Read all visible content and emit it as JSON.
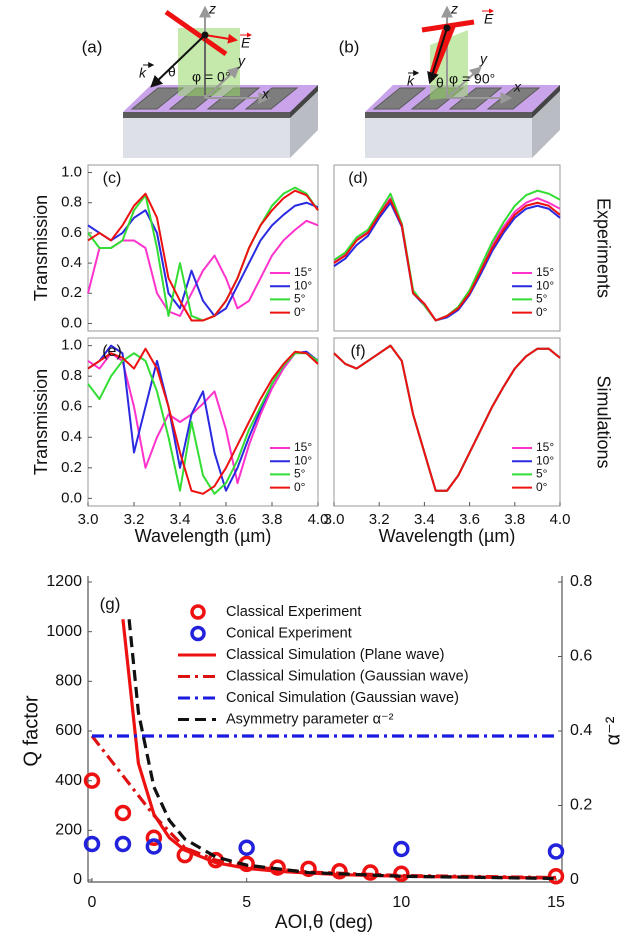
{
  "diagrams": [
    {
      "label": "(a)",
      "texts": [
        "z",
        "y",
        "x",
        "θ",
        "k",
        "E",
        "φ = 0°"
      ]
    },
    {
      "label": "(b)",
      "texts": [
        "z",
        "y",
        "x",
        "θ",
        "k",
        "E",
        "φ = 90°"
      ]
    }
  ],
  "chart_data": [
    {
      "type": "line",
      "label": "(c)",
      "ylabel": "Transmission",
      "x": [
        3,
        3.05,
        3.1,
        3.15,
        3.2,
        3.25,
        3.3,
        3.35,
        3.4,
        3.45,
        3.5,
        3.55,
        3.6,
        3.65,
        3.7,
        3.75,
        3.8,
        3.85,
        3.9,
        3.95,
        4
      ],
      "xlim": [
        3,
        4
      ],
      "ylim": [
        -0.05,
        1.05
      ],
      "yticks": [
        {
          "value": 0,
          "label": "0.0"
        },
        0.2,
        0.4,
        0.6,
        0.8,
        {
          "value": 1,
          "label": "1.0"
        }
      ],
      "series": [
        {
          "name": "15°",
          "color": "#ff33cc",
          "values": [
            0.2,
            0.5,
            0.5,
            0.55,
            0.55,
            0.5,
            0.2,
            0.08,
            0.05,
            0.2,
            0.35,
            0.45,
            0.3,
            0.1,
            0.15,
            0.3,
            0.45,
            0.55,
            0.62,
            0.68,
            0.65
          ]
        },
        {
          "name": "10°",
          "color": "#2a2ae0",
          "values": [
            0.65,
            0.6,
            0.55,
            0.6,
            0.7,
            0.75,
            0.6,
            0.2,
            0.1,
            0.35,
            0.15,
            0.05,
            0.1,
            0.25,
            0.4,
            0.55,
            0.65,
            0.72,
            0.78,
            0.8,
            0.77
          ]
        },
        {
          "name": "5°",
          "color": "#33dd33",
          "values": [
            0.6,
            0.5,
            0.5,
            0.55,
            0.75,
            0.85,
            0.5,
            0.05,
            0.4,
            0.05,
            0.02,
            0.05,
            0.15,
            0.3,
            0.5,
            0.65,
            0.78,
            0.86,
            0.9,
            0.86,
            0.75
          ]
        },
        {
          "name": "0°",
          "color": "#ee1111",
          "values": [
            0.55,
            0.6,
            0.55,
            0.65,
            0.78,
            0.86,
            0.7,
            0.3,
            0.15,
            0.02,
            0.02,
            0.05,
            0.15,
            0.3,
            0.5,
            0.65,
            0.75,
            0.83,
            0.88,
            0.85,
            0.75
          ]
        }
      ]
    },
    {
      "type": "line",
      "label": "(d)",
      "side_label": "Experiments",
      "x": [
        3,
        3.05,
        3.1,
        3.15,
        3.2,
        3.25,
        3.3,
        3.35,
        3.4,
        3.45,
        3.5,
        3.55,
        3.6,
        3.65,
        3.7,
        3.75,
        3.8,
        3.85,
        3.9,
        3.95,
        4
      ],
      "xlim": [
        3,
        4
      ],
      "ylim": [
        -0.05,
        1.05
      ],
      "series": [
        {
          "name": "15°",
          "color": "#ff33cc",
          "values": [
            0.41,
            0.46,
            0.56,
            0.61,
            0.73,
            0.83,
            0.66,
            0.21,
            0.13,
            0.02,
            0.05,
            0.1,
            0.21,
            0.36,
            0.52,
            0.64,
            0.74,
            0.8,
            0.83,
            0.8,
            0.76
          ]
        },
        {
          "name": "10°",
          "color": "#2a2ae0",
          "values": [
            0.38,
            0.43,
            0.52,
            0.58,
            0.7,
            0.8,
            0.64,
            0.2,
            0.12,
            0.02,
            0.04,
            0.09,
            0.19,
            0.33,
            0.48,
            0.6,
            0.7,
            0.76,
            0.78,
            0.76,
            0.7
          ]
        },
        {
          "name": "5°",
          "color": "#33dd33",
          "values": [
            0.42,
            0.47,
            0.57,
            0.62,
            0.74,
            0.86,
            0.66,
            0.22,
            0.12,
            0.02,
            0.05,
            0.11,
            0.22,
            0.38,
            0.54,
            0.67,
            0.78,
            0.85,
            0.88,
            0.86,
            0.82
          ]
        },
        {
          "name": "0°",
          "color": "#ee1111",
          "values": [
            0.4,
            0.45,
            0.55,
            0.6,
            0.72,
            0.82,
            0.65,
            0.2,
            0.13,
            0.02,
            0.05,
            0.1,
            0.2,
            0.35,
            0.5,
            0.62,
            0.72,
            0.78,
            0.8,
            0.78,
            0.72
          ]
        }
      ]
    },
    {
      "type": "line",
      "label": "(e)",
      "ylabel": "Transmission",
      "xlabel": "Wavelength (µm)",
      "x": [
        3,
        3.05,
        3.1,
        3.15,
        3.2,
        3.25,
        3.3,
        3.35,
        3.4,
        3.45,
        3.5,
        3.55,
        3.6,
        3.65,
        3.7,
        3.75,
        3.8,
        3.85,
        3.9,
        3.95,
        4
      ],
      "xlim": [
        3,
        4
      ],
      "ylim": [
        -0.05,
        1.05
      ],
      "xticks": [
        {
          "value": 3,
          "label": "3.0"
        },
        3.2,
        3.4,
        3.6,
        3.8,
        {
          "value": 4,
          "label": "4.0"
        }
      ],
      "yticks": [
        {
          "value": 0,
          "label": "0.0"
        },
        0.2,
        0.4,
        0.6,
        0.8,
        {
          "value": 1,
          "label": "1.0"
        }
      ],
      "series": [
        {
          "name": "15°",
          "color": "#ff33cc",
          "values": [
            0.9,
            0.85,
            0.95,
            0.9,
            0.6,
            0.2,
            0.4,
            0.55,
            0.5,
            0.55,
            0.62,
            0.7,
            0.45,
            0.1,
            0.35,
            0.55,
            0.72,
            0.85,
            0.95,
            0.96,
            0.9
          ]
        },
        {
          "name": "10°",
          "color": "#2a2ae0",
          "values": [
            0.85,
            0.9,
            1,
            0.95,
            0.3,
            0.6,
            0.9,
            0.6,
            0.2,
            0.55,
            0.7,
            0.3,
            0.05,
            0.2,
            0.4,
            0.58,
            0.75,
            0.87,
            0.95,
            0.96,
            0.9
          ]
        },
        {
          "name": "5°",
          "color": "#33dd33",
          "values": [
            0.75,
            0.65,
            0.8,
            0.9,
            0.95,
            0.9,
            0.7,
            0.4,
            0.05,
            0.5,
            0.15,
            0.03,
            0.1,
            0.25,
            0.45,
            0.6,
            0.75,
            0.87,
            0.95,
            0.95,
            0.9
          ]
        },
        {
          "name": "0°",
          "color": "#ee1111",
          "values": [
            0.85,
            0.9,
            0.95,
            0.92,
            0.85,
            0.98,
            0.85,
            0.6,
            0.3,
            0.05,
            0.03,
            0.08,
            0.2,
            0.35,
            0.5,
            0.65,
            0.78,
            0.88,
            0.96,
            0.95,
            0.88
          ]
        }
      ]
    },
    {
      "type": "line",
      "label": "(f)",
      "side_label": "Simulations",
      "xlabel": "Wavelength (µm)",
      "x": [
        3,
        3.05,
        3.1,
        3.15,
        3.2,
        3.25,
        3.3,
        3.35,
        3.4,
        3.45,
        3.5,
        3.55,
        3.6,
        3.65,
        3.7,
        3.75,
        3.8,
        3.85,
        3.9,
        3.95,
        4
      ],
      "xlim": [
        3,
        4
      ],
      "ylim": [
        -0.05,
        1.05
      ],
      "xticks": [
        {
          "value": 3,
          "label": "3.0"
        },
        3.2,
        3.4,
        3.6,
        3.8,
        {
          "value": 4,
          "label": "4.0"
        }
      ],
      "series": [
        {
          "name": "15°",
          "color": "#ff33cc",
          "values": [
            0.95,
            0.88,
            0.85,
            0.9,
            0.95,
            1,
            0.9,
            0.55,
            0.3,
            0.05,
            0.05,
            0.15,
            0.3,
            0.45,
            0.6,
            0.73,
            0.85,
            0.93,
            0.98,
            0.98,
            0.92
          ]
        },
        {
          "name": "10°",
          "color": "#2a2ae0",
          "values": [
            0.95,
            0.88,
            0.85,
            0.9,
            0.95,
            1,
            0.9,
            0.55,
            0.3,
            0.05,
            0.05,
            0.15,
            0.3,
            0.45,
            0.6,
            0.73,
            0.85,
            0.93,
            0.98,
            0.98,
            0.92
          ]
        },
        {
          "name": "5°",
          "color": "#33dd33",
          "values": [
            0.95,
            0.88,
            0.85,
            0.9,
            0.95,
            1,
            0.9,
            0.55,
            0.3,
            0.05,
            0.05,
            0.15,
            0.3,
            0.45,
            0.6,
            0.73,
            0.85,
            0.93,
            0.98,
            0.98,
            0.92
          ]
        },
        {
          "name": "0°",
          "color": "#ee1111",
          "values": [
            0.95,
            0.88,
            0.85,
            0.9,
            0.95,
            1,
            0.9,
            0.55,
            0.3,
            0.05,
            0.05,
            0.15,
            0.3,
            0.45,
            0.6,
            0.73,
            0.85,
            0.93,
            0.98,
            0.98,
            0.92
          ]
        }
      ]
    },
    {
      "type": "line",
      "label": "(g)",
      "xlabel": "AOI,θ (deg)",
      "ylabel": "Q factor",
      "y2label": "α⁻²",
      "xlim": [
        0,
        15
      ],
      "xticks": [
        0,
        5,
        10,
        15
      ],
      "ylim": [
        0,
        1200
      ],
      "yticks": [
        0,
        200,
        400,
        600,
        800,
        1000,
        1200
      ],
      "y2lim": [
        0,
        0.8
      ],
      "y2ticks": [
        0,
        0.2,
        0.4,
        0.6,
        0.8
      ],
      "series": [
        {
          "name": "Classical Experiment",
          "color": "#ee1111",
          "marker": "circle",
          "x": [
            0,
            1,
            2,
            3,
            4,
            5,
            6,
            7,
            8,
            9,
            10,
            15
          ],
          "values": [
            400,
            270,
            170,
            100,
            80,
            65,
            50,
            45,
            35,
            30,
            25,
            15
          ]
        },
        {
          "name": "Conical Experiment",
          "color": "#2222dd",
          "marker": "circle",
          "x": [
            0,
            1,
            2,
            5,
            10,
            15
          ],
          "values": [
            145,
            145,
            135,
            130,
            125,
            115
          ]
        },
        {
          "name": "Classical Simulation (Plane wave)",
          "color": "#ee1111",
          "dash": "solid",
          "x": [
            1,
            1.5,
            2,
            2.5,
            3,
            4,
            5,
            6,
            7,
            8,
            10,
            12,
            15
          ],
          "values": [
            1050,
            470,
            265,
            170,
            120,
            70,
            47,
            35,
            28,
            22,
            15,
            12,
            8
          ]
        },
        {
          "name": "Classical Simulation (Gaussian wave)",
          "color": "#dd1111",
          "dash": "dashdot",
          "x": [
            0,
            1,
            2,
            3,
            4,
            5,
            7,
            10,
            15
          ],
          "values": [
            580,
            420,
            260,
            130,
            80,
            55,
            32,
            18,
            10
          ]
        },
        {
          "name": "Conical Simulation (Gaussian wave)",
          "color": "#1a1ae0",
          "dash": "dashdot",
          "x": [
            0,
            15
          ],
          "values": [
            580,
            580
          ]
        },
        {
          "name": "Asymmetry parameter α⁻²",
          "color": "#111111",
          "dash": "dash",
          "axis": "y2",
          "x": [
            1.2,
            1.5,
            2,
            2.5,
            3,
            4,
            5,
            7,
            10,
            15
          ],
          "values": [
            0.7,
            0.45,
            0.25,
            0.16,
            0.11,
            0.062,
            0.04,
            0.02,
            0.01,
            0.004
          ]
        }
      ]
    }
  ]
}
